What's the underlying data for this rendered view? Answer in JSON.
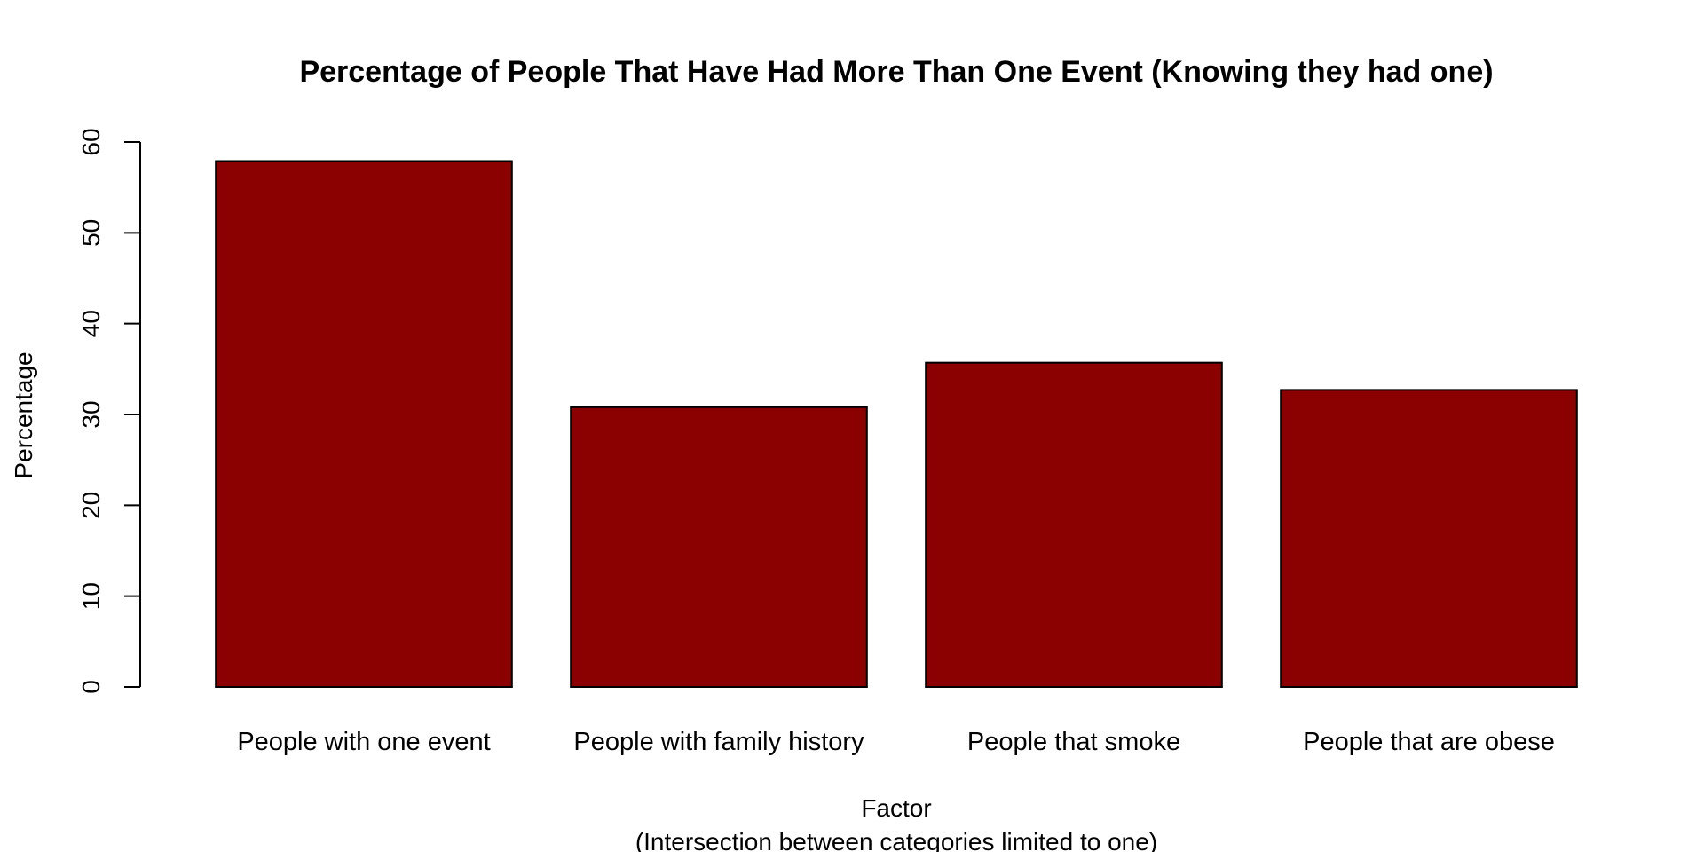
{
  "chart_data": {
    "type": "bar",
    "title": "Percentage of People That Have Had More Than One Event (Knowing they had one)",
    "xlabel": "Factor",
    "xlabel_sub": "(Intersection between categories limited to one)",
    "ylabel": "Percentage",
    "categories": [
      "People with one event",
      "People with family history",
      "People that smoke",
      "People that are obese"
    ],
    "values": [
      57.9,
      30.8,
      35.7,
      32.7
    ],
    "ylim": [
      0,
      60
    ],
    "yticks": [
      "0",
      "10",
      "20",
      "30",
      "40",
      "50",
      "60"
    ],
    "grid": false,
    "bar_color": "#8B0000"
  }
}
